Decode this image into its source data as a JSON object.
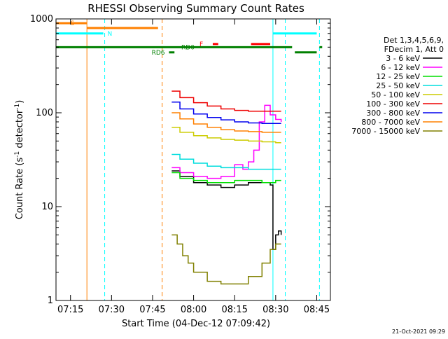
{
  "chart_data": {
    "type": "line",
    "title": "RHESSI Observing Summary Count Rates",
    "xlabel": "Start Time (04-Dec-12 07:09:42)",
    "ylabel_main": "Count Rate (s",
    "ylabel_sup": "-1",
    "ylabel_tail": " detector",
    "ylabel_sup2": "-1",
    "ylabel_close": ")",
    "yscale": "log",
    "ylim": [
      1,
      1000
    ],
    "xlim": [
      "07:09:42",
      "08:50:00"
    ],
    "x_ticks": [
      {
        "t": "07:15",
        "label": "07:15"
      },
      {
        "t": "07:30",
        "label": "07:30"
      },
      {
        "t": "07:45",
        "label": "07:45"
      },
      {
        "t": "08:00",
        "label": "08:00"
      },
      {
        "t": "08:15",
        "label": "08:15"
      },
      {
        "t": "08:30",
        "label": "08:30"
      },
      {
        "t": "08:45",
        "label": "08:45"
      }
    ],
    "y_ticks": [
      {
        "v": 1,
        "label": "1"
      },
      {
        "v": 10,
        "label": "10"
      },
      {
        "v": 100,
        "label": "100"
      },
      {
        "v": 1000,
        "label": "1000"
      }
    ],
    "legend_header": [
      "Det 1,3,4,5,6,9,",
      "FDecim 1, Att 0"
    ],
    "legend_placement": "right",
    "series": [
      {
        "name": "3 - 6 keV",
        "color": "#000000",
        "x": [
          "07:52",
          "07:55",
          "08:00",
          "08:05",
          "08:10",
          "08:15",
          "08:20",
          "08:25",
          "08:28",
          "08:29",
          "08:30",
          "08:31",
          "08:32"
        ],
        "y": [
          24,
          21,
          18,
          17,
          16,
          17,
          18,
          18,
          17,
          3.5,
          5,
          5.5,
          5
        ]
      },
      {
        "name": "6 - 12 keV",
        "color": "#ff00ff",
        "x": [
          "07:52",
          "07:55",
          "08:00",
          "08:05",
          "08:10",
          "08:15",
          "08:18",
          "08:20",
          "08:22",
          "08:24",
          "08:26",
          "08:28",
          "08:30",
          "08:32"
        ],
        "y": [
          26,
          23,
          21,
          20,
          21,
          28,
          25,
          30,
          40,
          80,
          120,
          95,
          85,
          80
        ]
      },
      {
        "name": "12 - 25 keV",
        "color": "#00dd00",
        "x": [
          "07:52",
          "07:55",
          "08:00",
          "08:05",
          "08:10",
          "08:15",
          "08:20",
          "08:25",
          "08:30",
          "08:32"
        ],
        "y": [
          23,
          20,
          19,
          18,
          18,
          19,
          19,
          18,
          19,
          19
        ]
      },
      {
        "name": "25 - 50 keV",
        "color": "#00dddd",
        "x": [
          "07:52",
          "07:55",
          "08:00",
          "08:05",
          "08:10",
          "08:15",
          "08:20",
          "08:25",
          "08:30",
          "08:32"
        ],
        "y": [
          36,
          32,
          29,
          27,
          26,
          26,
          25,
          25,
          25,
          25
        ]
      },
      {
        "name": "50 - 100 keV",
        "color": "#cccc00",
        "x": [
          "07:52",
          "07:55",
          "08:00",
          "08:05",
          "08:10",
          "08:15",
          "08:20",
          "08:25",
          "08:30",
          "08:32"
        ],
        "y": [
          70,
          62,
          57,
          54,
          52,
          51,
          50,
          49,
          48,
          48
        ]
      },
      {
        "name": "100 - 300 keV",
        "color": "#ee0000",
        "x": [
          "07:52",
          "07:55",
          "08:00",
          "08:05",
          "08:10",
          "08:15",
          "08:20",
          "08:25",
          "08:30",
          "08:32"
        ],
        "y": [
          170,
          145,
          128,
          118,
          110,
          106,
          104,
          104,
          104,
          104
        ]
      },
      {
        "name": "300 - 800 keV",
        "color": "#0000ee",
        "x": [
          "07:52",
          "07:55",
          "08:00",
          "08:05",
          "08:10",
          "08:15",
          "08:20",
          "08:25",
          "08:30",
          "08:32"
        ],
        "y": [
          130,
          110,
          97,
          89,
          84,
          80,
          78,
          77,
          77,
          77
        ]
      },
      {
        "name": "800 - 7000 keV",
        "color": "#ff8000",
        "x": [
          "07:52",
          "07:55",
          "08:00",
          "08:05",
          "08:10",
          "08:15",
          "08:20",
          "08:25",
          "08:30",
          "08:32"
        ],
        "y": [
          100,
          86,
          76,
          70,
          66,
          64,
          63,
          62,
          62,
          62
        ]
      },
      {
        "name": "7000 - 15000 keV",
        "color": "#808000",
        "x": [
          "07:52",
          "07:54",
          "07:56",
          "07:58",
          "08:00",
          "08:05",
          "08:10",
          "08:15",
          "08:20",
          "08:25",
          "08:28",
          "08:30",
          "08:32"
        ],
        "y": [
          5,
          4,
          3,
          2.5,
          2,
          1.6,
          1.5,
          1.5,
          1.8,
          2.5,
          3.5,
          4,
          4
        ]
      }
    ],
    "state_bars": [
      {
        "label": "S",
        "color": "#ff8000",
        "y": 900,
        "x0": "07:09:42",
        "x1": "07:21:00",
        "row": "high",
        "label_at": "07:17",
        "label_side": "left"
      },
      {
        "label": "",
        "color": "#ff8000",
        "y": 800,
        "x0": "07:21:00",
        "x1": "07:47:00",
        "row": "high"
      },
      {
        "label": "N",
        "color": "#00ffff",
        "y": 700,
        "x0": "07:09:42",
        "x1": "07:27:00",
        "row": "high",
        "label_at": "07:28",
        "label_side": "right"
      },
      {
        "label": "",
        "color": "#00ffff",
        "y": 700,
        "x0": "08:29:00",
        "x1": "08:45:00",
        "row": "high"
      },
      {
        "label": "F",
        "color": "#ff0000",
        "y": 540,
        "x0": "08:07:00",
        "x1": "08:09:00",
        "row": "mid",
        "label_at": "08:04",
        "label_side": "left"
      },
      {
        "label": "",
        "color": "#ff0000",
        "y": 540,
        "x0": "08:21:00",
        "x1": "08:28:00",
        "row": "mid"
      },
      {
        "label": "",
        "color": "#008000",
        "y": 500,
        "x0": "07:09:42",
        "x1": "08:36:00",
        "row": "low"
      },
      {
        "label": "",
        "color": "#008000",
        "y": 500,
        "x0": "08:46:00",
        "x1": "08:47:00",
        "row": "low"
      },
      {
        "label": "RD6",
        "color": "#008000",
        "y": 440,
        "x0": "07:51:00",
        "x1": "07:53:00",
        "row": "low2",
        "label_at": "07:50",
        "label_side": "left"
      },
      {
        "label": "",
        "color": "#008000",
        "y": 440,
        "x0": "08:37:00",
        "x1": "08:45:00",
        "row": "low2"
      },
      {
        "label": "RD0",
        "color": "#008000",
        "y": 500,
        "x0": "07:55:00",
        "x1": "07:55:00",
        "row": "low",
        "label_at": "07:55",
        "label_side": "right"
      }
    ],
    "vertical_lines": [
      {
        "t": "07:09:42",
        "color": "#00ffff",
        "style": "solid"
      },
      {
        "t": "07:21:00",
        "color": "#ff8000",
        "style": "solid"
      },
      {
        "t": "07:27:30",
        "color": "#00ffff",
        "style": "dashed"
      },
      {
        "t": "07:48:30",
        "color": "#ff8000",
        "style": "dashed"
      },
      {
        "t": "08:29:00",
        "color": "#00ffff",
        "style": "solid"
      },
      {
        "t": "08:33:30",
        "color": "#00ffff",
        "style": "dashed"
      },
      {
        "t": "08:46:00",
        "color": "#00ffff",
        "style": "dashed"
      }
    ]
  },
  "footer_stamp": "21-Oct-2021 09:29"
}
